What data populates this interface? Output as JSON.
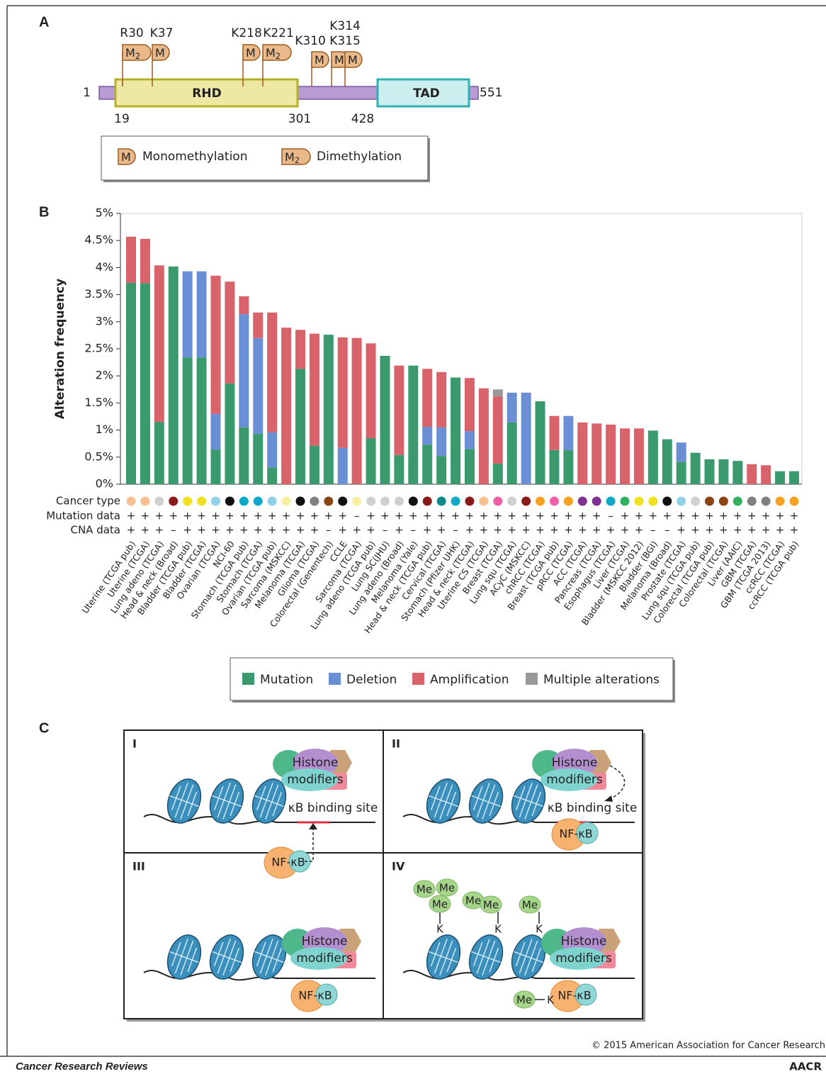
{
  "panel_a": {
    "label": "A",
    "sites": [
      {
        "label": "R30",
        "mark": "M",
        "sub": "2"
      },
      {
        "label": "K37",
        "mark": "M"
      },
      {
        "label": "K218",
        "mark": "M"
      },
      {
        "label": "K221",
        "mark": "M",
        "sub": "2"
      },
      {
        "label": "K310",
        "mark": "M"
      },
      {
        "label": "K314",
        "mark": "M"
      },
      {
        "label": "K315",
        "mark": "M"
      }
    ],
    "positions": [
      1,
      19,
      301,
      428,
      551
    ],
    "domains": [
      "RHD",
      "TAD"
    ],
    "legend": [
      {
        "mark": "M",
        "label": "Monomethylation"
      },
      {
        "mark": "M",
        "sub": "2",
        "label": "Dimethylation"
      }
    ]
  },
  "chart_data": {
    "type": "bar",
    "stacked": true,
    "label": "B",
    "y_label": "Alteration frequency",
    "categories": [
      "Uterine (TCGA pub)",
      "Uterine (TCGA)",
      "Lung adeno (TCGA)",
      "Head & neck (Broad)",
      "Bladder (TCGA pub)",
      "Bladder (TCGA)",
      "Ovarian (TCGA)",
      "NCI-60",
      "Stomach (TCGA pub)",
      "Stomach (TCGA)",
      "Ovarian (TCGA pub)",
      "Sarcoma (MSKCC)",
      "Melanoma (TCGA)",
      "Glioma (TCGA)",
      "Colorectal (Genentech)",
      "CCLE",
      "Sarcoma (TCGA)",
      "Lung adeno (TCGA pub)",
      "Lung SC(JHU)",
      "Lung adeno (Broad)",
      "Melanoma (Yale)",
      "Head & neck (TCGA pub)",
      "Cervical (TCGA)",
      "Stomach (Pfizer UHK)",
      "Head & neck (TCGA)",
      "Uterine CS (TCGA)",
      "Breast (TCGA)",
      "Lung squ (TCGA)",
      "ACyC (MSKCC)",
      "chRCC (TCGA)",
      "Breast (TCGA pub)",
      "pRCC (TCGA)",
      "ACC (TCGA)",
      "Pancreas (TCGA)",
      "Esophagus (TCGA)",
      "Liver (TCGA)",
      "Bladder (MSKCC 2012)",
      "Bladder (BGI)",
      "Melanoma (Broad)",
      "Prostate (TCGA)",
      "Lung squ (TCGA pub)",
      "Colorectal (TCGA pub)",
      "Colorectal (TCGA)",
      "Liver (AAIC)",
      "GBM (TCGA)",
      "GBM (TCGA 2013)",
      "ccRCC (TCGA)",
      "ccRCC (TCGA pub)"
    ],
    "series": [
      {
        "name": "Mutation",
        "color": "#3a9a6e",
        "values": [
          3.72,
          3.71,
          1.15,
          4.02,
          2.34,
          2.34,
          0.64,
          1.86,
          1.05,
          0.93,
          0.31,
          0,
          2.13,
          0.71,
          2.76,
          0,
          0,
          0.85,
          2.37,
          0.54,
          2.19,
          0.73,
          0.52,
          1.97,
          0.65,
          0,
          0.38,
          1.14,
          0,
          1.53,
          0.63,
          0.63,
          0,
          0,
          0,
          0,
          0,
          0.99,
          0.83,
          0.41,
          0.58,
          0.46,
          0.46,
          0.43,
          0,
          0,
          0.24,
          0.24
        ]
      },
      {
        "name": "Deletion",
        "color": "#6b8fd4",
        "values": [
          0,
          0,
          0,
          0,
          1.59,
          1.59,
          0.66,
          0,
          2.09,
          1.77,
          0.65,
          0,
          0,
          0,
          0,
          0.67,
          0,
          0,
          0,
          0,
          0,
          0.33,
          0.53,
          0,
          0.33,
          0,
          0,
          0.55,
          1.69,
          0,
          0,
          0.63,
          0,
          0,
          0,
          0,
          0,
          0,
          0,
          0.36,
          0,
          0,
          0,
          0,
          0,
          0,
          0,
          0
        ]
      },
      {
        "name": "Amplification",
        "color": "#d9636a",
        "values": [
          0.85,
          0.82,
          2.89,
          0,
          0,
          0,
          2.55,
          1.88,
          0.33,
          0.47,
          2.21,
          2.89,
          0.72,
          2.07,
          0,
          2.04,
          2.7,
          1.75,
          0,
          1.65,
          0,
          1.07,
          1.02,
          0,
          0.98,
          1.77,
          1.24,
          0,
          0,
          0,
          0.63,
          0,
          1.14,
          1.12,
          1.1,
          1.03,
          1.03,
          0,
          0,
          0,
          0,
          0,
          0,
          0,
          0.37,
          0.35,
          0,
          0
        ]
      },
      {
        "name": "Multiple alterations",
        "color": "#999999",
        "values": [
          0,
          0,
          0,
          0,
          0,
          0,
          0,
          0,
          0,
          0,
          0,
          0,
          0,
          0,
          0,
          0,
          0,
          0,
          0,
          0,
          0,
          0,
          0,
          0,
          0,
          0,
          0.13,
          0,
          0,
          0,
          0,
          0,
          0,
          0,
          0,
          0,
          0,
          0,
          0,
          0,
          0,
          0,
          0,
          0,
          0,
          0,
          0,
          0
        ]
      }
    ],
    "ylim": [
      0,
      5
    ],
    "yticks": [
      {
        "value": 0,
        "label": "0%"
      },
      {
        "value": 0.5,
        "label": "0.5%"
      },
      {
        "value": 1,
        "label": "1%"
      },
      {
        "value": 1.5,
        "label": "1.5%"
      },
      {
        "value": 2,
        "label": "2%"
      },
      {
        "value": 2.5,
        "label": "2.5%"
      },
      {
        "value": 3,
        "label": "3%"
      },
      {
        "value": 3.5,
        "label": "3.5%"
      },
      {
        "value": 4,
        "label": "4%"
      },
      {
        "value": 4.5,
        "label": "4.5%"
      },
      {
        "value": 5,
        "label": "5%"
      }
    ],
    "row_labels": [
      "Cancer type",
      "Mutation data",
      "CNA data"
    ],
    "cancer_type_colors": [
      "#f8c090",
      "#f8c090",
      "#d0d0d0",
      "#8b1a1a",
      "#f0e020",
      "#f0e020",
      "#90d0e8",
      "#111111",
      "#10a8c8",
      "#10a8c8",
      "#90d0e8",
      "#f8f0a0",
      "#111111",
      "#808080",
      "#8b4513",
      "#111111",
      "#f8f0a0",
      "#d0d0d0",
      "#d0d0d0",
      "#d0d0d0",
      "#111111",
      "#8b1a1a",
      "#108888",
      "#10a8c8",
      "#8b1a1a",
      "#f8c090",
      "#f060a8",
      "#d0d0d0",
      "#8b1a1a",
      "#f8a020",
      "#f060a8",
      "#f8a020",
      "#803090",
      "#803090",
      "#10a8c8",
      "#30b060",
      "#f0e020",
      "#f0e020",
      "#111111",
      "#90d0e8",
      "#d0d0d0",
      "#8b4513",
      "#8b4513",
      "#30b060",
      "#808080",
      "#808080",
      "#f8a020",
      "#f8a020"
    ],
    "mutation_data": [
      "+",
      "+",
      "+",
      "+",
      "+",
      "+",
      "+",
      "+",
      "+",
      "+",
      "+",
      "+",
      "+",
      "+",
      "+",
      "+",
      "–",
      "+",
      "+",
      "+",
      "+",
      "+",
      "+",
      "+",
      "+",
      "+",
      "+",
      "+",
      "+",
      "+",
      "+",
      "+",
      "+",
      "+",
      "–",
      "+",
      "+",
      "+",
      "+",
      "+",
      "+",
      "+",
      "+",
      "+",
      "+",
      "+",
      "+",
      "+"
    ],
    "cna_data": [
      "+",
      "+",
      "+",
      "–",
      "+",
      "+",
      "+",
      "+",
      "+",
      "+",
      "+",
      "+",
      "+",
      "+",
      "–",
      "+",
      "+",
      "+",
      "–",
      "+",
      "–",
      "+",
      "+",
      "–",
      "+",
      "+",
      "+",
      "+",
      "+",
      "+",
      "+",
      "+",
      "+",
      "+",
      "+",
      "+",
      "+",
      "–",
      "–",
      "+",
      "+",
      "+",
      "+",
      "+",
      "+",
      "+",
      "+",
      "+"
    ]
  },
  "panel_c": {
    "label": "C",
    "quadrants": [
      "I",
      "II",
      "III",
      "IV"
    ],
    "histone": "Histone",
    "modifiers": "modifiers",
    "binding_site": "κB binding site",
    "nfkb": "NF-κB",
    "me": "Me",
    "k": "K"
  },
  "footer": {
    "copyright": "© 2015 American Association for Cancer Research",
    "journal": "Cancer Research Reviews",
    "publisher": "AACR"
  }
}
